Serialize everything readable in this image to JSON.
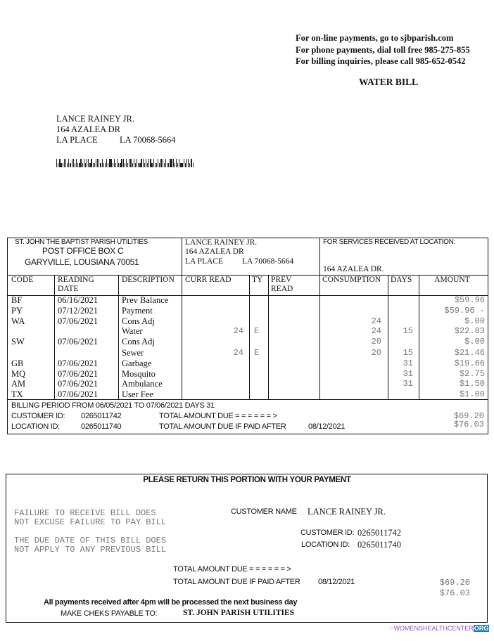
{
  "header": {
    "online": "For on-line payments, go to sjbparish.com",
    "phone": "For phone payments, dial toll free 985-275-855",
    "billing": "For billing inquiries, please call 985-652-0542",
    "title": "WATER BILL"
  },
  "mailing": {
    "name": "LANCE RAINEY JR.",
    "street": "164 AZALEA DR",
    "city": "LA PLACE",
    "state_zip": "LA  70068-5664",
    "barcode": "postal-barcode"
  },
  "stub": {
    "utility_name": "ST. JOHN THE BAPTIST PARISH UTILITIES",
    "utility_box": "POST OFFICE BOX C",
    "utility_city": "GARYVILLE, LOUSIANA 70051",
    "cust_name": "LANCE RAINEY JR.",
    "cust_street": "164 AZALEA DR",
    "cust_city": "LA PLACE",
    "cust_state_zip": "LA  70068-5664",
    "service_label": "FOR SERVICES RECEIVED AT LOCATION:",
    "service_location": "164 AZALEA DR."
  },
  "table": {
    "headers": [
      "CODE",
      "READING DATE",
      "DESCRIPTION",
      "CURR READ",
      "TY",
      "PREV READ",
      "CONSUMPTION",
      "DAYS",
      "AMOUNT"
    ],
    "rows": [
      {
        "code": "BF",
        "date": "06/16/2021",
        "desc": "Prev Balance",
        "curr": "",
        "ty": "",
        "prev": "",
        "cons": "",
        "days": "",
        "amount": "$59.96"
      },
      {
        "code": "PY",
        "date": "07/12/2021",
        "desc": "Payment",
        "curr": "",
        "ty": "",
        "prev": "",
        "cons": "",
        "days": "",
        "amount": "$59.96 -"
      },
      {
        "code": "WA",
        "date": "07/06/2021",
        "desc": "Cons Adj",
        "curr": "",
        "ty": "",
        "prev": "",
        "cons": "24",
        "days": "",
        "amount": "$.00"
      },
      {
        "code": "",
        "date": "",
        "desc": "Water",
        "curr": "24",
        "ty": "E",
        "prev": "",
        "cons": "24",
        "days": "15",
        "amount": "$22.83"
      },
      {
        "code": "SW",
        "date": "07/06/2021",
        "desc": "Cons Adj",
        "curr": "",
        "ty": "",
        "prev": "",
        "cons": "20",
        "days": "",
        "amount": "$.00"
      },
      {
        "code": "",
        "date": "",
        "desc": "Sewer",
        "curr": "24",
        "ty": "E",
        "prev": "",
        "cons": "20",
        "days": "15",
        "amount": "$21.46"
      },
      {
        "code": "GB",
        "date": "07/06/2021",
        "desc": "Garbage",
        "curr": "",
        "ty": "",
        "prev": "",
        "cons": "",
        "days": "31",
        "amount": "$19.66"
      },
      {
        "code": "MQ",
        "date": "07/06/2021",
        "desc": "Mosquito",
        "curr": "",
        "ty": "",
        "prev": "",
        "cons": "",
        "days": "31",
        "amount": "$2.75"
      },
      {
        "code": "AM",
        "date": "07/06/2021",
        "desc": "Ambulance",
        "curr": "",
        "ty": "",
        "prev": "",
        "cons": "",
        "days": "31",
        "amount": "$1.50"
      },
      {
        "code": "TX",
        "date": "07/06/2021",
        "desc": "User Fee",
        "curr": "",
        "ty": "",
        "prev": "",
        "cons": "",
        "days": "",
        "amount": "$1.00"
      }
    ]
  },
  "summary": {
    "billing_period": "BILLING PERIOD FROM 06/05/2021 TO 07/06/2021 DAYS 31",
    "customer_id_label": "CUSTOMER ID:",
    "customer_id": "0265011742",
    "location_id_label": "LOCATION ID:",
    "location_id": "0265011740",
    "total_due_label": "TOTAL AMOUNT DUE = = = = = = >",
    "total_late_label": "TOTAL AMOUNT DUE IF PAID AFTER",
    "due_date": "08/12/2021",
    "total_due": "$69.20",
    "total_late": "$76.03"
  },
  "return": {
    "title": "PLEASE RETURN THIS PORTION WITH YOUR PAYMENT",
    "notice1a": "FAILURE TO RECEIVE BILL DOES",
    "notice1b": "NOT EXCUSE FAILURE TO PAY BILL",
    "notice2a": "THE DUE DATE OF THIS BILL DOES",
    "notice2b": "NOT APPLY TO ANY PREVIOUS BILL",
    "customer_name_label": "CUSTOMER NAME",
    "customer_name": "LANCE RAINEY JR.",
    "customer_id_label": "CUSTOMER ID:",
    "customer_id": "0265011742",
    "location_id_label": "LOCATION ID:",
    "location_id": "0265011740",
    "total_due_label": "TOTAL AMOUNT DUE = = = = = = >",
    "total_late_label": "TOTAL AMOUNT DUE IF PAID AFTER",
    "due_date": "08/12/2021",
    "total_due": "$69.20",
    "total_late": "$76.03",
    "cutoff_notice": "All payments received after 4pm will be processed the next business day",
    "payable_label": "MAKE CHEKS PAYABLE TO:",
    "payable_to": "ST. JOHN PARISH UTILITIES"
  },
  "watermark": {
    "text": "WOMENSHEALTHCENTER",
    "suffix": "ORG",
    "color": "#a34fbf"
  }
}
